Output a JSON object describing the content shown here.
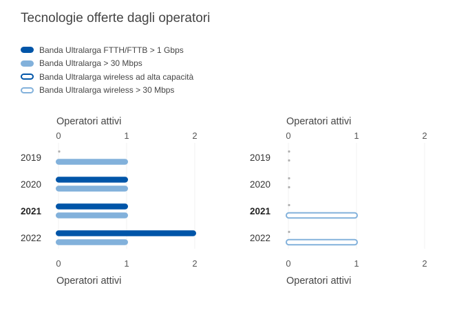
{
  "title": "Tecnologie offerte dagli operatori",
  "legend": [
    {
      "label": "Banda Ultralarga FTTH/FTTB > 1 Gbps",
      "color": "#0055a8",
      "style": "filled"
    },
    {
      "label": "Banda Ultralarga > 30 Mbps",
      "color": "#82b1db",
      "style": "filled"
    },
    {
      "label": "Banda Ultralarga wireless ad alta capacità",
      "color": "#0055a8",
      "style": "outline"
    },
    {
      "label": "Banda Ultralarga wireless > 30 Mbps",
      "color": "#82b1db",
      "style": "outline"
    }
  ],
  "chart_data": [
    {
      "type": "bar",
      "orientation": "horizontal",
      "categories": [
        "2019",
        "2020",
        "2021",
        "2022"
      ],
      "highlight_category": "2021",
      "xlabel": "Operatori attivi",
      "xlim": [
        0,
        2
      ],
      "xticks": [
        "0",
        "1",
        "2"
      ],
      "series": [
        {
          "name": "Banda Ultralarga FTTH/FTTB > 1 Gbps",
          "color": "#0055a8",
          "style": "filled",
          "values": [
            0,
            1,
            1,
            2
          ]
        },
        {
          "name": "Banda Ultralarga > 30 Mbps",
          "color": "#82b1db",
          "style": "filled",
          "values": [
            1,
            1,
            1,
            1
          ]
        }
      ]
    },
    {
      "type": "bar",
      "orientation": "horizontal",
      "categories": [
        "2019",
        "2020",
        "2021",
        "2022"
      ],
      "highlight_category": "2021",
      "xlabel": "Operatori attivi",
      "xlim": [
        0,
        2
      ],
      "xticks": [
        "0",
        "1",
        "2"
      ],
      "series": [
        {
          "name": "Banda Ultralarga wireless ad alta capacità",
          "color": "#0055a8",
          "style": "outline",
          "values": [
            0,
            0,
            0,
            0
          ]
        },
        {
          "name": "Banda Ultralarga wireless > 30 Mbps",
          "color": "#82b1db",
          "style": "outline",
          "values": [
            0,
            0,
            1,
            1
          ]
        }
      ]
    }
  ]
}
